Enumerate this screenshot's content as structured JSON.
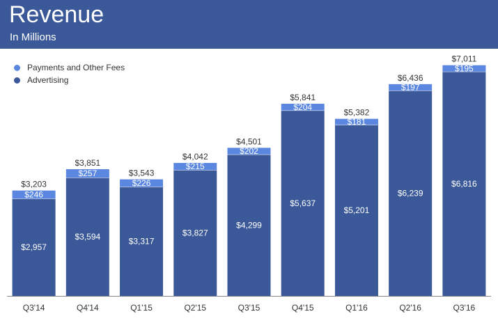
{
  "header": {
    "title": "Revenue",
    "subtitle": "In Millions"
  },
  "legend": [
    {
      "label": "Payments and Other Fees",
      "color": "#5b87e0"
    },
    {
      "label": "Advertising",
      "color": "#3b5998"
    }
  ],
  "chart_data": {
    "type": "bar",
    "stacked": true,
    "categories": [
      "Q3'14",
      "Q4'14",
      "Q1'15",
      "Q2'15",
      "Q3'15",
      "Q4'15",
      "Q1'16",
      "Q2'16",
      "Q3'16"
    ],
    "series": [
      {
        "name": "Advertising",
        "color": "#3b5998",
        "values": [
          2957,
          3594,
          3317,
          3827,
          4299,
          5637,
          5201,
          6239,
          6816
        ]
      },
      {
        "name": "Payments and Other Fees",
        "color": "#5b87e0",
        "values": [
          246,
          257,
          226,
          215,
          202,
          204,
          181,
          197,
          195
        ]
      }
    ],
    "value_labels": {
      "Advertising": [
        "$2,957",
        "$3,594",
        "$3,317",
        "$3,827",
        "$4,299",
        "$5,637",
        "$5,201",
        "$6,239",
        "$6,816"
      ],
      "Payments and Other Fees": [
        "$246",
        "$257",
        "$226",
        "$215",
        "$202",
        "$204",
        "$181",
        "$197",
        "$195"
      ]
    },
    "totals": [
      "$3,203",
      "$3,851",
      "$3,543",
      "$4,042",
      "$4,501",
      "$5,841",
      "$5,382",
      "$6,436",
      "$7,011"
    ],
    "title": "Revenue",
    "subtitle": "In Millions",
    "legend_position": "top-left",
    "grid": false,
    "ylim": [
      0,
      7300
    ]
  }
}
